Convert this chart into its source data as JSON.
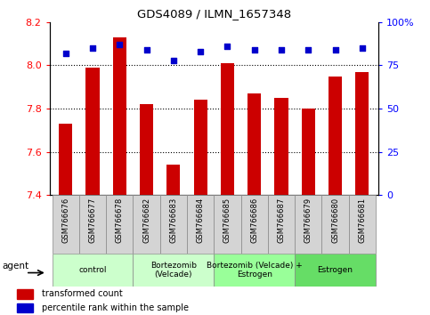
{
  "title": "GDS4089 / ILMN_1657348",
  "samples": [
    "GSM766676",
    "GSM766677",
    "GSM766678",
    "GSM766682",
    "GSM766683",
    "GSM766684",
    "GSM766685",
    "GSM766686",
    "GSM766687",
    "GSM766679",
    "GSM766680",
    "GSM766681"
  ],
  "bar_values": [
    7.73,
    7.99,
    8.13,
    7.82,
    7.54,
    7.84,
    8.01,
    7.87,
    7.85,
    7.8,
    7.95,
    7.97
  ],
  "percentile_values": [
    82,
    85,
    87,
    84,
    78,
    83,
    86,
    84,
    84,
    84,
    84,
    85
  ],
  "bar_color": "#cc0000",
  "percentile_color": "#0000cc",
  "ymin": 7.4,
  "ymax": 8.2,
  "yticks": [
    7.4,
    7.6,
    7.8,
    8.0,
    8.2
  ],
  "y2min": 0,
  "y2max": 100,
  "y2ticks": [
    0,
    25,
    50,
    75,
    100
  ],
  "y2ticklabels": [
    "0",
    "25",
    "50",
    "75",
    "100%"
  ],
  "groups": [
    {
      "label": "control",
      "start": 0,
      "end": 3,
      "color": "#ccffcc"
    },
    {
      "label": "Bortezomib\n(Velcade)",
      "start": 3,
      "end": 6,
      "color": "#ccffcc"
    },
    {
      "label": "Bortezomib (Velcade) +\nEstrogen",
      "start": 6,
      "end": 9,
      "color": "#99ff99"
    },
    {
      "label": "Estrogen",
      "start": 9,
      "end": 12,
      "color": "#66dd66"
    }
  ],
  "agent_label": "agent",
  "legend_bar_label": "transformed count",
  "legend_pt_label": "percentile rank within the sample",
  "bar_width": 0.5,
  "cell_color": "#d4d4d4",
  "cell_edge_color": "#888888"
}
